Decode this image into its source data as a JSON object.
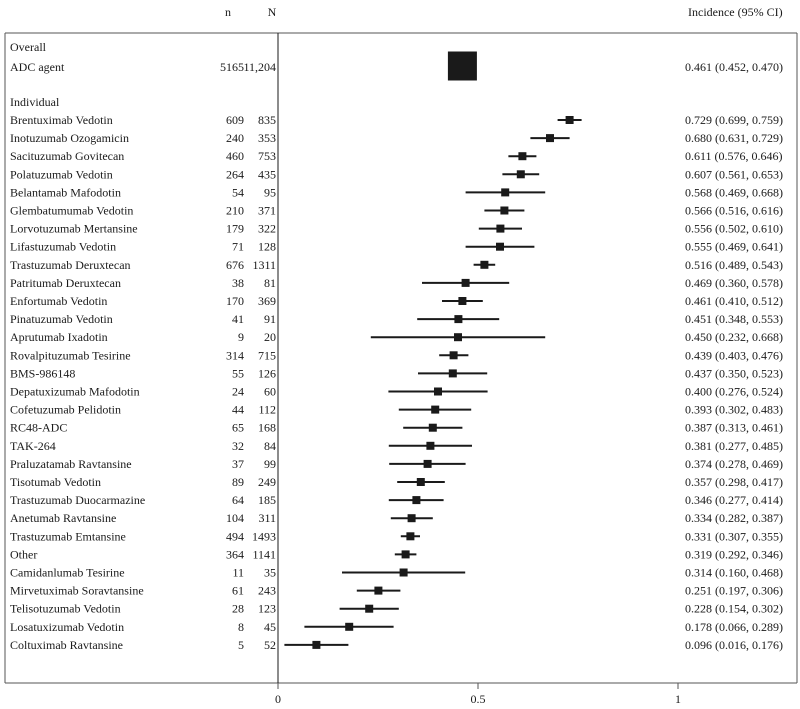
{
  "chart_data": {
    "type": "forest",
    "columns": {
      "n": "n",
      "N": "N",
      "incidence": "Incidence (95% CI)"
    },
    "x_ticks": [
      {
        "value": 0,
        "label": "0"
      },
      {
        "value": 0.5,
        "label": "0.5"
      },
      {
        "value": 1,
        "label": "1"
      }
    ],
    "xlim": [
      0,
      1
    ],
    "reference_line": 0,
    "overall": {
      "group_label": "Overall",
      "label": "ADC agent",
      "n": "5165",
      "N": "11,204",
      "est": 0.461,
      "lo": 0.452,
      "hi": 0.47,
      "ci_text": "0.461 (0.452, 0.470)"
    },
    "individual_group_label": "Individual",
    "rows": [
      {
        "label": "Brentuximab Vedotin",
        "n": "609",
        "N": "835",
        "est": 0.729,
        "lo": 0.699,
        "hi": 0.759,
        "ci_text": "0.729 (0.699, 0.759)"
      },
      {
        "label": "Inotuzumab Ozogamicin",
        "n": "240",
        "N": "353",
        "est": 0.68,
        "lo": 0.631,
        "hi": 0.729,
        "ci_text": "0.680 (0.631, 0.729)"
      },
      {
        "label": "Sacituzumab Govitecan",
        "n": "460",
        "N": "753",
        "est": 0.611,
        "lo": 0.576,
        "hi": 0.646,
        "ci_text": "0.611 (0.576, 0.646)"
      },
      {
        "label": "Polatuzumab Vedotin",
        "n": "264",
        "N": "435",
        "est": 0.607,
        "lo": 0.561,
        "hi": 0.653,
        "ci_text": "0.607 (0.561, 0.653)"
      },
      {
        "label": "Belantamab Mafodotin",
        "n": "54",
        "N": "95",
        "est": 0.568,
        "lo": 0.469,
        "hi": 0.668,
        "ci_text": "0.568 (0.469, 0.668)"
      },
      {
        "label": "Glembatumumab Vedotin",
        "n": "210",
        "N": "371",
        "est": 0.566,
        "lo": 0.516,
        "hi": 0.616,
        "ci_text": "0.566 (0.516, 0.616)"
      },
      {
        "label": "Lorvotuzumab Mertansine",
        "n": "179",
        "N": "322",
        "est": 0.556,
        "lo": 0.502,
        "hi": 0.61,
        "ci_text": "0.556 (0.502, 0.610)"
      },
      {
        "label": "Lifastuzumab Vedotin",
        "n": "71",
        "N": "128",
        "est": 0.555,
        "lo": 0.469,
        "hi": 0.641,
        "ci_text": "0.555 (0.469, 0.641)"
      },
      {
        "label": "Trastuzumab Deruxtecan",
        "n": "676",
        "N": "1311",
        "est": 0.516,
        "lo": 0.489,
        "hi": 0.543,
        "ci_text": "0.516 (0.489, 0.543)"
      },
      {
        "label": "Patritumab Deruxtecan",
        "n": "38",
        "N": "81",
        "est": 0.469,
        "lo": 0.36,
        "hi": 0.578,
        "ci_text": "0.469 (0.360, 0.578)"
      },
      {
        "label": "Enfortumab Vedotin",
        "n": "170",
        "N": "369",
        "est": 0.461,
        "lo": 0.41,
        "hi": 0.512,
        "ci_text": "0.461 (0.410, 0.512)"
      },
      {
        "label": "Pinatuzumab Vedotin",
        "n": "41",
        "N": "91",
        "est": 0.451,
        "lo": 0.348,
        "hi": 0.553,
        "ci_text": "0.451 (0.348, 0.553)"
      },
      {
        "label": "Aprutumab Ixadotin",
        "n": "9",
        "N": "20",
        "est": 0.45,
        "lo": 0.232,
        "hi": 0.668,
        "ci_text": "0.450 (0.232, 0.668)"
      },
      {
        "label": "Rovalpituzumab Tesirine",
        "n": "314",
        "N": "715",
        "est": 0.439,
        "lo": 0.403,
        "hi": 0.476,
        "ci_text": "0.439 (0.403, 0.476)"
      },
      {
        "label": "BMS-986148",
        "n": "55",
        "N": "126",
        "est": 0.437,
        "lo": 0.35,
        "hi": 0.523,
        "ci_text": "0.437 (0.350, 0.523)"
      },
      {
        "label": "Depatuxizumab Mafodotin",
        "n": "24",
        "N": "60",
        "est": 0.4,
        "lo": 0.276,
        "hi": 0.524,
        "ci_text": "0.400 (0.276, 0.524)"
      },
      {
        "label": "Cofetuzumab Pelidotin",
        "n": "44",
        "N": "112",
        "est": 0.393,
        "lo": 0.302,
        "hi": 0.483,
        "ci_text": "0.393 (0.302, 0.483)"
      },
      {
        "label": "RC48-ADC",
        "n": "65",
        "N": "168",
        "est": 0.387,
        "lo": 0.313,
        "hi": 0.461,
        "ci_text": "0.387 (0.313, 0.461)"
      },
      {
        "label": "TAK-264",
        "n": "32",
        "N": "84",
        "est": 0.381,
        "lo": 0.277,
        "hi": 0.485,
        "ci_text": "0.381 (0.277, 0.485)"
      },
      {
        "label": "Praluzatamab Ravtansine",
        "n": "37",
        "N": "99",
        "est": 0.374,
        "lo": 0.278,
        "hi": 0.469,
        "ci_text": "0.374 (0.278, 0.469)"
      },
      {
        "label": "Tisotumab Vedotin",
        "n": "89",
        "N": "249",
        "est": 0.357,
        "lo": 0.298,
        "hi": 0.417,
        "ci_text": "0.357 (0.298, 0.417)"
      },
      {
        "label": "Trastuzumab Duocarmazine",
        "n": "64",
        "N": "185",
        "est": 0.346,
        "lo": 0.277,
        "hi": 0.414,
        "ci_text": "0.346 (0.277, 0.414)"
      },
      {
        "label": "Anetumab Ravtansine",
        "n": "104",
        "N": "311",
        "est": 0.334,
        "lo": 0.282,
        "hi": 0.387,
        "ci_text": "0.334 (0.282, 0.387)"
      },
      {
        "label": "Trastuzumab Emtansine",
        "n": "494",
        "N": "1493",
        "est": 0.331,
        "lo": 0.307,
        "hi": 0.355,
        "ci_text": "0.331 (0.307, 0.355)"
      },
      {
        "label": "Other",
        "n": "364",
        "N": "1141",
        "est": 0.319,
        "lo": 0.292,
        "hi": 0.346,
        "ci_text": "0.319 (0.292, 0.346)"
      },
      {
        "label": "Camidanlumab Tesirine",
        "n": "11",
        "N": "35",
        "est": 0.314,
        "lo": 0.16,
        "hi": 0.468,
        "ci_text": "0.314 (0.160, 0.468)"
      },
      {
        "label": "Mirvetuximab Soravtansine",
        "n": "61",
        "N": "243",
        "est": 0.251,
        "lo": 0.197,
        "hi": 0.306,
        "ci_text": "0.251 (0.197, 0.306)"
      },
      {
        "label": "Telisotuzumab Vedotin",
        "n": "28",
        "N": "123",
        "est": 0.228,
        "lo": 0.154,
        "hi": 0.302,
        "ci_text": "0.228 (0.154, 0.302)"
      },
      {
        "label": "Losatuxizumab Vedotin",
        "n": "8",
        "N": "45",
        "est": 0.178,
        "lo": 0.066,
        "hi": 0.289,
        "ci_text": "0.178 (0.066, 0.289)"
      },
      {
        "label": "Coltuximab Ravtansine",
        "n": "5",
        "N": "52",
        "est": 0.096,
        "lo": 0.016,
        "hi": 0.176,
        "ci_text": "0.096 (0.016, 0.176)"
      }
    ],
    "colors": {
      "ink": "#1a1a1a",
      "frame": "#555555"
    }
  }
}
